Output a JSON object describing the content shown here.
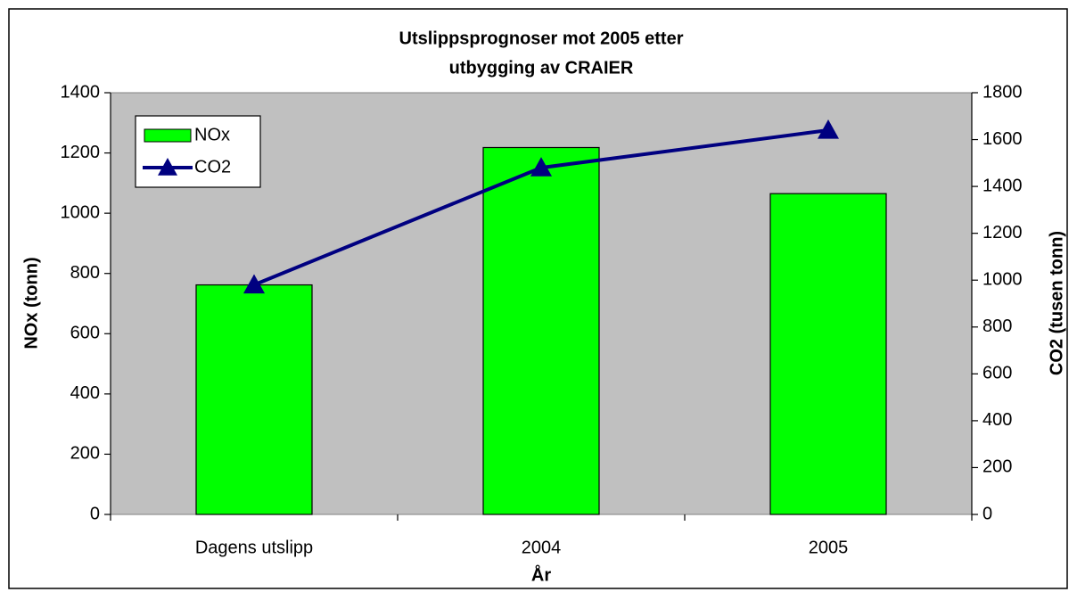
{
  "chart_data": {
    "type": "bar",
    "title": [
      "Utslippsprognoser mot 2005 etter",
      "utbygging av CRAIER"
    ],
    "categories": [
      "Dagens utslipp",
      "2004",
      "2005"
    ],
    "series": [
      {
        "name": "NOx",
        "color": "#00ff00",
        "type": "bar",
        "values": [
          762,
          1218,
          1065
        ]
      },
      {
        "name": "CO2",
        "color": "#000080",
        "type": "line",
        "axis": "y2",
        "values": [
          980,
          1480,
          1640
        ]
      }
    ],
    "xlabel": "År",
    "ylabel": "NOx (tonn)",
    "y2label": "CO2 (tusen tonn)",
    "ylim": [
      0,
      1400
    ],
    "yticks": [
      0,
      200,
      400,
      600,
      800,
      1000,
      1200,
      1400
    ],
    "y2lim": [
      0,
      1800
    ],
    "y2ticks": [
      0,
      200,
      400,
      600,
      800,
      1000,
      1200,
      1400,
      1600,
      1800
    ],
    "plot_background": "#c0c0c0",
    "legend": "upper left"
  }
}
